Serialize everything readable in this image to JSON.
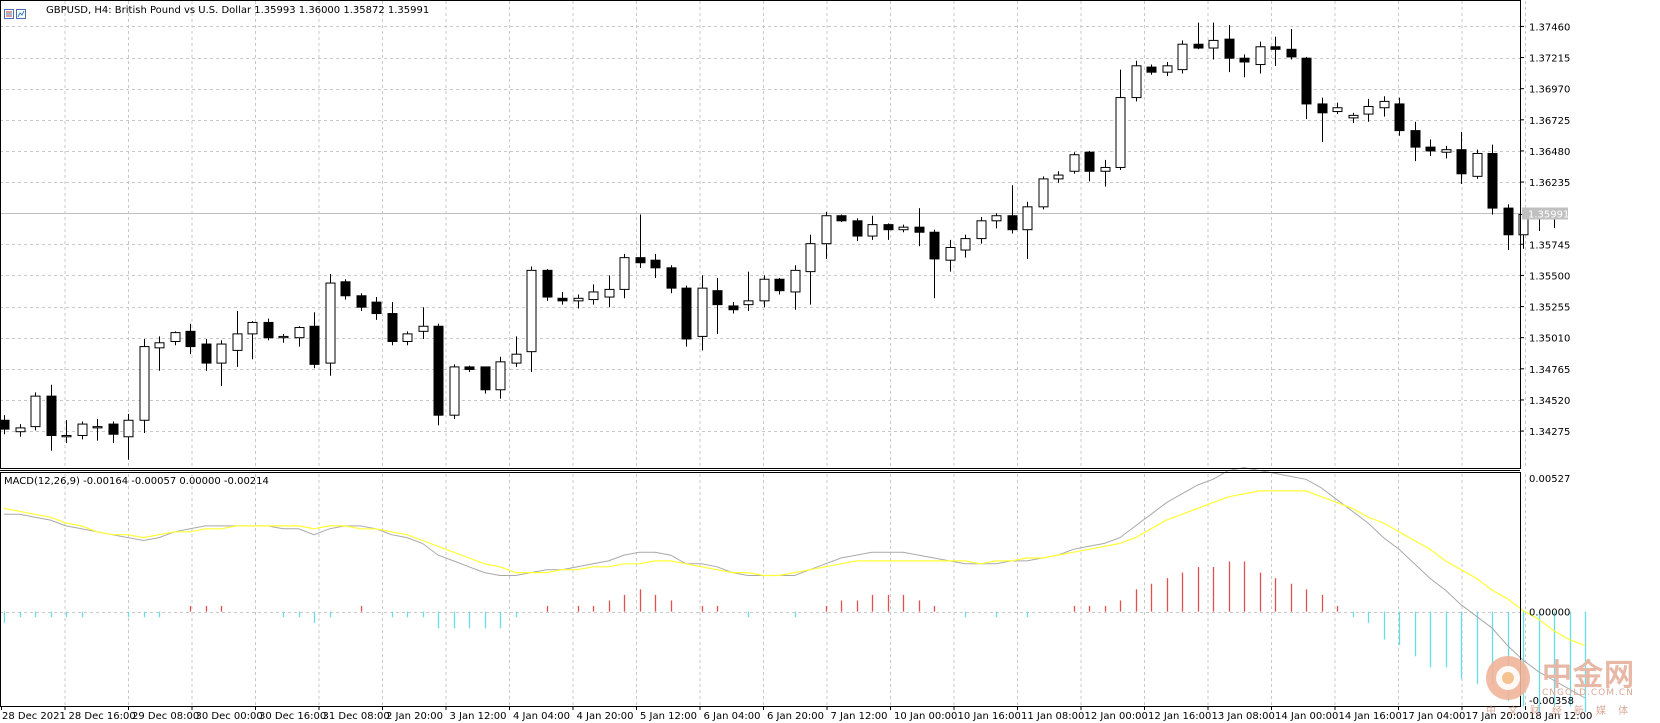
{
  "header": {
    "symbol": "GBPUSD",
    "timeframe": "H4",
    "description": "British Pound vs U.S. Dollar",
    "title": "GBPUSD, H4:  British Pound vs U.S. Dollar  1.35993 1.36000 1.35872 1.35991"
  },
  "indicator": {
    "title": "MACD(12,26,9) -0.00164 -0.00057 0.00000 -0.00214"
  },
  "current_price_label": "1.35991",
  "watermark": {
    "brand": "中金网",
    "site": "CNGOLD.COM.CN",
    "tagline": "中文财经新媒体"
  },
  "colors": {
    "background": "#ffffff",
    "grid": "#c8c8c8",
    "candle": "#000000",
    "macd_main": "#a9a9a9",
    "macd_signal": "#ffff33",
    "hist_pos": "#e05050",
    "hist_neg": "#66dde8"
  },
  "chart_data": [
    {
      "type": "candlestick",
      "title": "GBPUSD, H4",
      "y_ticks": [
        "1.37460",
        "1.37215",
        "1.36970",
        "1.36725",
        "1.36480",
        "1.36235",
        "1.35745",
        "1.35500",
        "1.35255",
        "1.35010",
        "1.34765",
        "1.34520",
        "1.34275"
      ],
      "ylim": [
        1.34,
        1.3755
      ],
      "x_ticks": [
        "28 Dec 2021",
        "28 Dec 16:00",
        "29 Dec 08:00",
        "30 Dec 00:00",
        "30 Dec 16:00",
        "31 Dec 08:00",
        "2 Jan 20:00",
        "3 Jan 12:00",
        "4 Jan 04:00",
        "4 Jan 20:00",
        "5 Jan 12:00",
        "6 Jan 04:00",
        "6 Jan 20:00",
        "7 Jan 12:00",
        "10 Jan 00:00",
        "10 Jan 16:00",
        "11 Jan 08:00",
        "12 Jan 00:00",
        "12 Jan 16:00",
        "13 Jan 08:00",
        "14 Jan 00:00",
        "14 Jan 16:00",
        "17 Jan 04:00",
        "17 Jan 20:00",
        "18 Jan 12:00"
      ],
      "grid": true,
      "current_price": 1.35991,
      "candles": [
        {
          "o": 1.3436,
          "h": 1.344,
          "l": 1.3425,
          "c": 1.3429
        },
        {
          "o": 1.3427,
          "h": 1.3433,
          "l": 1.3423,
          "c": 1.343
        },
        {
          "o": 1.3431,
          "h": 1.3458,
          "l": 1.3428,
          "c": 1.3455
        },
        {
          "o": 1.3455,
          "h": 1.3464,
          "l": 1.3412,
          "c": 1.3424
        },
        {
          "o": 1.3423,
          "h": 1.3436,
          "l": 1.3418,
          "c": 1.3424
        },
        {
          "o": 1.3424,
          "h": 1.3435,
          "l": 1.3421,
          "c": 1.3433
        },
        {
          "o": 1.343,
          "h": 1.3437,
          "l": 1.342,
          "c": 1.3431
        },
        {
          "o": 1.3433,
          "h": 1.3435,
          "l": 1.3418,
          "c": 1.3425
        },
        {
          "o": 1.3423,
          "h": 1.3441,
          "l": 1.3405,
          "c": 1.3436
        },
        {
          "o": 1.3436,
          "h": 1.35,
          "l": 1.3426,
          "c": 1.3494
        },
        {
          "o": 1.3493,
          "h": 1.3502,
          "l": 1.3475,
          "c": 1.3497
        },
        {
          "o": 1.3498,
          "h": 1.3506,
          "l": 1.3495,
          "c": 1.3505
        },
        {
          "o": 1.3506,
          "h": 1.3512,
          "l": 1.3488,
          "c": 1.3494
        },
        {
          "o": 1.3496,
          "h": 1.35,
          "l": 1.3475,
          "c": 1.3481
        },
        {
          "o": 1.3481,
          "h": 1.3499,
          "l": 1.3463,
          "c": 1.3496
        },
        {
          "o": 1.3491,
          "h": 1.3522,
          "l": 1.3478,
          "c": 1.3504
        },
        {
          "o": 1.3504,
          "h": 1.3514,
          "l": 1.3484,
          "c": 1.3513
        },
        {
          "o": 1.3513,
          "h": 1.3516,
          "l": 1.3499,
          "c": 1.3501
        },
        {
          "o": 1.3501,
          "h": 1.3504,
          "l": 1.3497,
          "c": 1.3502
        },
        {
          "o": 1.3501,
          "h": 1.351,
          "l": 1.3494,
          "c": 1.3509
        },
        {
          "o": 1.351,
          "h": 1.3521,
          "l": 1.3477,
          "c": 1.348
        },
        {
          "o": 1.3481,
          "h": 1.3551,
          "l": 1.3471,
          "c": 1.3544
        },
        {
          "o": 1.3545,
          "h": 1.3547,
          "l": 1.3531,
          "c": 1.3534
        },
        {
          "o": 1.3534,
          "h": 1.3536,
          "l": 1.3522,
          "c": 1.3525
        },
        {
          "o": 1.3529,
          "h": 1.3533,
          "l": 1.3515,
          "c": 1.352
        },
        {
          "o": 1.352,
          "h": 1.3529,
          "l": 1.3495,
          "c": 1.3498
        },
        {
          "o": 1.3498,
          "h": 1.3506,
          "l": 1.3495,
          "c": 1.3504
        },
        {
          "o": 1.3506,
          "h": 1.3525,
          "l": 1.35,
          "c": 1.351
        },
        {
          "o": 1.351,
          "h": 1.3512,
          "l": 1.3432,
          "c": 1.344
        },
        {
          "o": 1.344,
          "h": 1.348,
          "l": 1.3437,
          "c": 1.3478
        },
        {
          "o": 1.3478,
          "h": 1.3479,
          "l": 1.3474,
          "c": 1.3476
        },
        {
          "o": 1.3478,
          "h": 1.3478,
          "l": 1.3457,
          "c": 1.346
        },
        {
          "o": 1.346,
          "h": 1.3486,
          "l": 1.3453,
          "c": 1.3482
        },
        {
          "o": 1.3481,
          "h": 1.3502,
          "l": 1.3478,
          "c": 1.3488
        },
        {
          "o": 1.349,
          "h": 1.3557,
          "l": 1.3474,
          "c": 1.3554
        },
        {
          "o": 1.3554,
          "h": 1.3555,
          "l": 1.353,
          "c": 1.3533
        },
        {
          "o": 1.3532,
          "h": 1.3537,
          "l": 1.3527,
          "c": 1.353
        },
        {
          "o": 1.353,
          "h": 1.3535,
          "l": 1.3524,
          "c": 1.3532
        },
        {
          "o": 1.3531,
          "h": 1.3543,
          "l": 1.3527,
          "c": 1.3537
        },
        {
          "o": 1.3533,
          "h": 1.355,
          "l": 1.3525,
          "c": 1.3539
        },
        {
          "o": 1.3539,
          "h": 1.3567,
          "l": 1.3532,
          "c": 1.3564
        },
        {
          "o": 1.3564,
          "h": 1.3598,
          "l": 1.3556,
          "c": 1.356
        },
        {
          "o": 1.3562,
          "h": 1.3567,
          "l": 1.3548,
          "c": 1.3556
        },
        {
          "o": 1.3556,
          "h": 1.3558,
          "l": 1.3536,
          "c": 1.354
        },
        {
          "o": 1.354,
          "h": 1.3542,
          "l": 1.3494,
          "c": 1.35
        },
        {
          "o": 1.3502,
          "h": 1.355,
          "l": 1.3491,
          "c": 1.354
        },
        {
          "o": 1.3538,
          "h": 1.3548,
          "l": 1.3504,
          "c": 1.3527
        },
        {
          "o": 1.3526,
          "h": 1.3529,
          "l": 1.352,
          "c": 1.3523
        },
        {
          "o": 1.3527,
          "h": 1.3553,
          "l": 1.3522,
          "c": 1.353
        },
        {
          "o": 1.353,
          "h": 1.355,
          "l": 1.3525,
          "c": 1.3547
        },
        {
          "o": 1.3547,
          "h": 1.3548,
          "l": 1.3535,
          "c": 1.3538
        },
        {
          "o": 1.3537,
          "h": 1.3558,
          "l": 1.3523,
          "c": 1.3554
        },
        {
          "o": 1.3553,
          "h": 1.3582,
          "l": 1.3527,
          "c": 1.3575
        },
        {
          "o": 1.3575,
          "h": 1.36,
          "l": 1.3563,
          "c": 1.3597
        },
        {
          "o": 1.3597,
          "h": 1.3598,
          "l": 1.3592,
          "c": 1.3593
        },
        {
          "o": 1.3593,
          "h": 1.3595,
          "l": 1.3577,
          "c": 1.3581
        },
        {
          "o": 1.3581,
          "h": 1.3597,
          "l": 1.3578,
          "c": 1.359
        },
        {
          "o": 1.359,
          "h": 1.3591,
          "l": 1.3578,
          "c": 1.3586
        },
        {
          "o": 1.3586,
          "h": 1.359,
          "l": 1.3584,
          "c": 1.3588
        },
        {
          "o": 1.3588,
          "h": 1.3603,
          "l": 1.3573,
          "c": 1.3584
        },
        {
          "o": 1.3584,
          "h": 1.3586,
          "l": 1.3532,
          "c": 1.3563
        },
        {
          "o": 1.3562,
          "h": 1.3578,
          "l": 1.3553,
          "c": 1.3572
        },
        {
          "o": 1.357,
          "h": 1.3582,
          "l": 1.3564,
          "c": 1.3579
        },
        {
          "o": 1.3579,
          "h": 1.3596,
          "l": 1.3575,
          "c": 1.3593
        },
        {
          "o": 1.3593,
          "h": 1.3599,
          "l": 1.3587,
          "c": 1.3597
        },
        {
          "o": 1.3597,
          "h": 1.3621,
          "l": 1.3583,
          "c": 1.3586
        },
        {
          "o": 1.3586,
          "h": 1.3608,
          "l": 1.3563,
          "c": 1.3604
        },
        {
          "o": 1.3604,
          "h": 1.3628,
          "l": 1.3602,
          "c": 1.3626
        },
        {
          "o": 1.3626,
          "h": 1.3632,
          "l": 1.3623,
          "c": 1.3629
        },
        {
          "o": 1.3632,
          "h": 1.3647,
          "l": 1.363,
          "c": 1.3645
        },
        {
          "o": 1.3647,
          "h": 1.3648,
          "l": 1.3624,
          "c": 1.3632
        },
        {
          "o": 1.3632,
          "h": 1.3641,
          "l": 1.362,
          "c": 1.3635
        },
        {
          "o": 1.3635,
          "h": 1.3712,
          "l": 1.3633,
          "c": 1.369
        },
        {
          "o": 1.369,
          "h": 1.3719,
          "l": 1.3687,
          "c": 1.3715
        },
        {
          "o": 1.3714,
          "h": 1.3716,
          "l": 1.3708,
          "c": 1.371
        },
        {
          "o": 1.371,
          "h": 1.3718,
          "l": 1.3707,
          "c": 1.3715
        },
        {
          "o": 1.3712,
          "h": 1.3735,
          "l": 1.3709,
          "c": 1.3732
        },
        {
          "o": 1.3732,
          "h": 1.3749,
          "l": 1.3728,
          "c": 1.3729
        },
        {
          "o": 1.3729,
          "h": 1.3749,
          "l": 1.372,
          "c": 1.3735
        },
        {
          "o": 1.3736,
          "h": 1.3747,
          "l": 1.371,
          "c": 1.3721
        },
        {
          "o": 1.3721,
          "h": 1.3724,
          "l": 1.3706,
          "c": 1.3718
        },
        {
          "o": 1.3716,
          "h": 1.3734,
          "l": 1.3709,
          "c": 1.373
        },
        {
          "o": 1.373,
          "h": 1.3738,
          "l": 1.3715,
          "c": 1.3728
        },
        {
          "o": 1.3728,
          "h": 1.3744,
          "l": 1.372,
          "c": 1.3722
        },
        {
          "o": 1.3721,
          "h": 1.3722,
          "l": 1.3673,
          "c": 1.3685
        },
        {
          "o": 1.3685,
          "h": 1.369,
          "l": 1.3655,
          "c": 1.3678
        },
        {
          "o": 1.3679,
          "h": 1.3686,
          "l": 1.3677,
          "c": 1.3682
        },
        {
          "o": 1.3674,
          "h": 1.3678,
          "l": 1.367,
          "c": 1.3676
        },
        {
          "o": 1.3677,
          "h": 1.3689,
          "l": 1.3671,
          "c": 1.3683
        },
        {
          "o": 1.3682,
          "h": 1.3691,
          "l": 1.3675,
          "c": 1.3687
        },
        {
          "o": 1.3685,
          "h": 1.369,
          "l": 1.366,
          "c": 1.3664
        },
        {
          "o": 1.3664,
          "h": 1.3671,
          "l": 1.364,
          "c": 1.3651
        },
        {
          "o": 1.3651,
          "h": 1.3657,
          "l": 1.3644,
          "c": 1.3648
        },
        {
          "o": 1.3647,
          "h": 1.3652,
          "l": 1.3642,
          "c": 1.3649
        },
        {
          "o": 1.3649,
          "h": 1.3663,
          "l": 1.3622,
          "c": 1.363
        },
        {
          "o": 1.3628,
          "h": 1.3649,
          "l": 1.3626,
          "c": 1.3646
        },
        {
          "o": 1.3646,
          "h": 1.3653,
          "l": 1.3598,
          "c": 1.3603
        },
        {
          "o": 1.3603,
          "h": 1.3606,
          "l": 1.357,
          "c": 1.3582
        },
        {
          "o": 1.3582,
          "h": 1.3603,
          "l": 1.3571,
          "c": 1.3598
        },
        {
          "o": 1.3597,
          "h": 1.3601,
          "l": 1.3585,
          "c": 1.36
        },
        {
          "o": 1.35993,
          "h": 1.36,
          "l": 1.35872,
          "c": 1.35991
        }
      ]
    },
    {
      "type": "line",
      "title": "MACD(12,26,9)",
      "y_ticks": [
        "0.00527",
        "0.00000",
        "-0.00358"
      ],
      "ylim": [
        -0.0038,
        0.00527
      ],
      "macd_main": [
        0.0036,
        0.0036,
        0.0035,
        0.0034,
        0.0032,
        0.0031,
        0.003,
        0.0029,
        0.0028,
        0.0027,
        0.0028,
        0.003,
        0.0031,
        0.0032,
        0.0032,
        0.0032,
        0.0032,
        0.0032,
        0.0031,
        0.0031,
        0.0029,
        0.0031,
        0.0032,
        0.0032,
        0.0031,
        0.0029,
        0.0028,
        0.0026,
        0.0022,
        0.002,
        0.0018,
        0.0016,
        0.0015,
        0.0015,
        0.0016,
        0.0017,
        0.0017,
        0.0018,
        0.0019,
        0.002,
        0.0022,
        0.0023,
        0.0023,
        0.0022,
        0.0019,
        0.0019,
        0.0018,
        0.0016,
        0.0015,
        0.0015,
        0.0015,
        0.0015,
        0.0017,
        0.0019,
        0.0021,
        0.0022,
        0.0023,
        0.0023,
        0.0023,
        0.0022,
        0.0021,
        0.002,
        0.0019,
        0.0019,
        0.0019,
        0.002,
        0.002,
        0.0021,
        0.0022,
        0.0024,
        0.0025,
        0.0026,
        0.0028,
        0.0032,
        0.0036,
        0.004,
        0.0043,
        0.0046,
        0.0048,
        0.0051,
        0.0052,
        0.0051,
        0.005,
        0.0049,
        0.0048,
        0.0045,
        0.0041,
        0.0037,
        0.0033,
        0.0028,
        0.0024,
        0.0019,
        0.0014,
        0.001,
        0.0005,
        0.0001,
        -0.0003,
        -0.0009,
        -0.0014,
        -0.0018,
        -0.0021,
        -0.0024,
        -0.0027
      ],
      "macd_signal": [
        0.0038,
        0.0037,
        0.0036,
        0.0035,
        0.0033,
        0.0032,
        0.003,
        0.0029,
        0.0029,
        0.0028,
        0.0029,
        0.003,
        0.003,
        0.0031,
        0.0031,
        0.0032,
        0.0032,
        0.0032,
        0.0032,
        0.0032,
        0.0031,
        0.0032,
        0.0032,
        0.0031,
        0.0031,
        0.003,
        0.0029,
        0.0027,
        0.0025,
        0.0023,
        0.0021,
        0.0019,
        0.0018,
        0.0016,
        0.0016,
        0.0016,
        0.0017,
        0.0017,
        0.0018,
        0.0018,
        0.0019,
        0.0019,
        0.002,
        0.002,
        0.0019,
        0.0018,
        0.0017,
        0.0016,
        0.0016,
        0.0015,
        0.0015,
        0.0016,
        0.0017,
        0.0018,
        0.0019,
        0.002,
        0.002,
        0.002,
        0.002,
        0.002,
        0.002,
        0.002,
        0.002,
        0.0019,
        0.002,
        0.002,
        0.0021,
        0.0021,
        0.0022,
        0.0023,
        0.0024,
        0.0025,
        0.0026,
        0.0028,
        0.0031,
        0.0034,
        0.0036,
        0.0038,
        0.004,
        0.0042,
        0.0043,
        0.0044,
        0.0044,
        0.0044,
        0.0044,
        0.0042,
        0.004,
        0.0038,
        0.0035,
        0.0033,
        0.003,
        0.0027,
        0.0024,
        0.002,
        0.0017,
        0.0014,
        0.001,
        0.0007,
        0.0003,
        0.0,
        -0.0004,
        -0.0007,
        -0.0009
      ]
    }
  ]
}
